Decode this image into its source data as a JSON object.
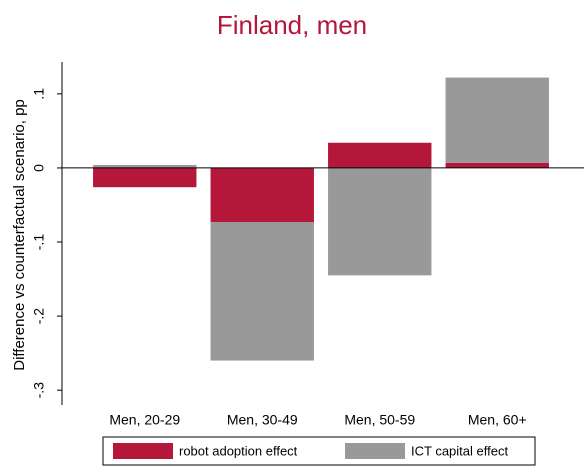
{
  "chart_data": {
    "type": "bar",
    "stacked": true,
    "title": "Finland, men",
    "y_label": "Difference vs counterfactual scenario, pp",
    "categories": [
      "Men, 20-29",
      "Men, 30-49",
      "Men, 50-59",
      "Men, 60+"
    ],
    "series": [
      {
        "name": "robot adoption effect",
        "color": "#b5173a",
        "values": [
          -0.026,
          -0.073,
          0.034,
          0.007
        ]
      },
      {
        "name": "ICT capital effect",
        "color": "#999999",
        "values": [
          0.004,
          -0.187,
          -0.145,
          0.115
        ]
      }
    ],
    "ylim": [
      -0.32,
      0.143
    ],
    "yticks": [
      {
        "value": 0.1,
        "label": ".1"
      },
      0,
      {
        "value": -0.1,
        "label": "-.1"
      },
      {
        "value": -0.2,
        "label": "-.2"
      },
      {
        "value": -0.3,
        "label": "-.3"
      }
    ],
    "grid": false,
    "legend": "bottom"
  }
}
